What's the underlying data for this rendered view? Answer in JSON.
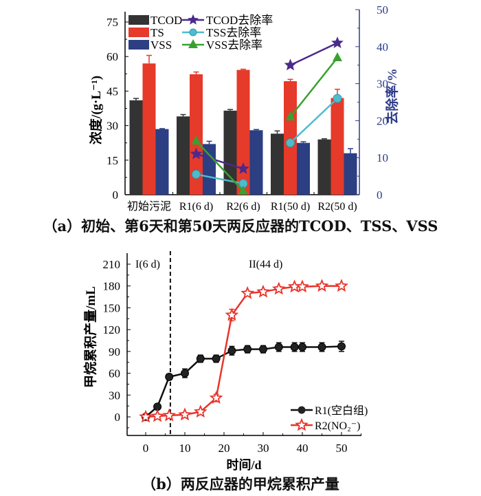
{
  "chart_data": [
    {
      "type": "bar",
      "categories": [
        "初始污泥",
        "R1(6 d)",
        "R2(6 d)",
        "R1(50 d)",
        "R2(50 d)"
      ],
      "ylabel": "浓度/(g·L⁻¹)",
      "y2label": "去除率/%",
      "ylim": [
        0,
        75
      ],
      "yticks": [
        0,
        15,
        30,
        45,
        60,
        75
      ],
      "y2lim": [
        0,
        50
      ],
      "y2ticks": [
        0,
        10,
        20,
        30,
        40,
        50
      ],
      "legend_position": "top-left",
      "series": [
        {
          "name": "TCOD",
          "color": "#333333",
          "values": [
            41,
            34,
            36.5,
            26.5,
            24
          ],
          "errors": [
            0.8,
            0.8,
            0.5,
            1.2,
            0.3
          ]
        },
        {
          "name": "TS",
          "color": "#e63a2a",
          "values": [
            57,
            52.3,
            54.2,
            49.3,
            42
          ],
          "errors": [
            3.5,
            1,
            0.3,
            0.8,
            3.8
          ]
        },
        {
          "name": "VSS",
          "color": "#2b3f82",
          "values": [
            28.5,
            22,
            28,
            22.5,
            18
          ],
          "errors": [
            0.2,
            1.2,
            0.3,
            0.5,
            2
          ]
        }
      ],
      "line_series": [
        {
          "name": "TCOD去除率",
          "color": "#4b2a8c",
          "marker": "star",
          "segments": [
            [
              [
                1,
                11
              ],
              [
                2,
                7
              ]
            ],
            [
              [
                3,
                35
              ],
              [
                4,
                41
              ]
            ]
          ]
        },
        {
          "name": "TSS去除率",
          "color": "#4dbccc",
          "marker": "circle",
          "segments": [
            [
              [
                1,
                5.5
              ],
              [
                2,
                3
              ]
            ],
            [
              [
                3,
                14
              ],
              [
                4,
                26
              ]
            ]
          ]
        },
        {
          "name": "VSS去除率",
          "color": "#3aa032",
          "marker": "triangle",
          "segments": [
            [
              [
                1,
                14.5
              ],
              [
                2,
                1
              ]
            ],
            [
              [
                3,
                21
              ],
              [
                4,
                37
              ]
            ]
          ]
        }
      ],
      "caption": "（a）初始、第6天和第50天两反应器的TCOD、TSS、VSS"
    },
    {
      "type": "line",
      "xlabel": "时间/d",
      "ylabel": "甲烷累积产量/mL",
      "xticks": [
        0,
        10,
        20,
        30,
        40,
        50
      ],
      "yticks": [
        0,
        30,
        60,
        90,
        120,
        150,
        180,
        210
      ],
      "phase_divider_x": 6.3,
      "annotations": [
        "I(6 d)",
        "II(44 d)"
      ],
      "legend_position": "bottom-right",
      "series": [
        {
          "name": "R1(空白组)",
          "color": "#111111",
          "marker": "sphere",
          "x": [
            0,
            3,
            6,
            10,
            14,
            18,
            22,
            26,
            30,
            34,
            38,
            40,
            45,
            50
          ],
          "y": [
            0,
            14,
            55,
            60,
            80,
            80,
            91,
            93,
            93,
            96,
            96,
            96,
            96,
            97
          ],
          "errors": [
            2,
            3,
            4,
            6,
            5,
            5,
            6,
            5,
            5,
            6,
            6,
            6,
            6,
            7
          ]
        },
        {
          "name": "R2(NO₂⁻)",
          "color": "#e8332a",
          "marker": "star",
          "x": [
            0,
            3,
            6,
            10,
            14,
            18,
            22,
            26,
            30,
            34,
            38,
            40,
            45,
            50
          ],
          "y": [
            0,
            1,
            2,
            3,
            7,
            26,
            140,
            170,
            172,
            176,
            179,
            179,
            180,
            180
          ],
          "errors": [
            1,
            1,
            1,
            1,
            2,
            5,
            8,
            3,
            3,
            3,
            2,
            2,
            2,
            2
          ]
        }
      ],
      "caption": "（b）两反应器的甲烷累积产量"
    }
  ]
}
